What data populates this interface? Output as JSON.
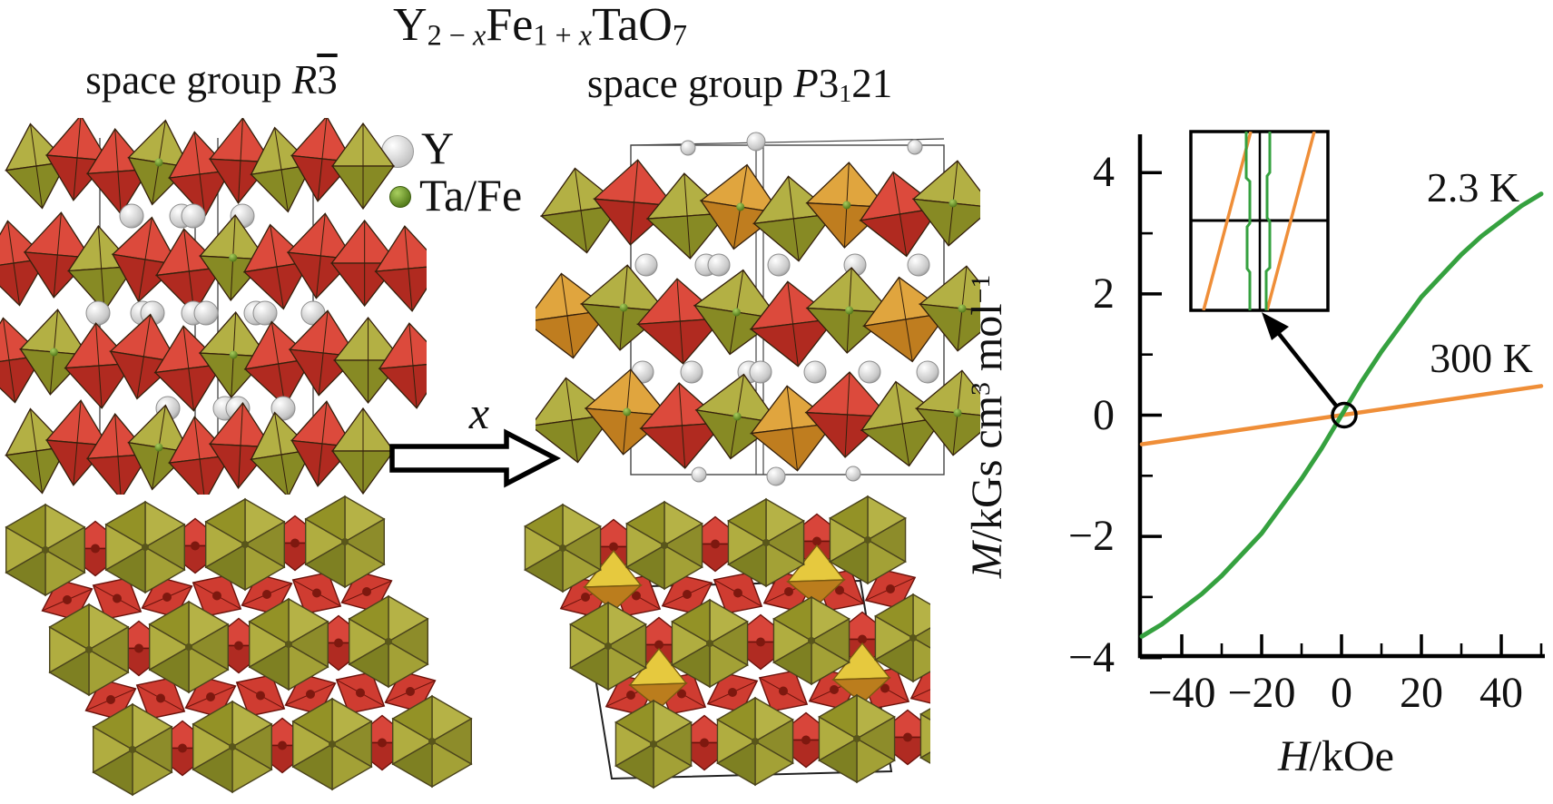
{
  "figure": {
    "title_segments": [
      {
        "text": "Y"
      },
      {
        "text": "2 − ",
        "style": "sub"
      },
      {
        "text": "x",
        "style": "sub-italic"
      },
      {
        "text": "Fe"
      },
      {
        "text": "1 + ",
        "style": "sub"
      },
      {
        "text": "x",
        "style": "sub-italic"
      },
      {
        "text": "TaO"
      },
      {
        "text": "7",
        "style": "sub"
      }
    ],
    "left_panel_label_segments": [
      {
        "text": "space group "
      },
      {
        "text": "R",
        "style": "italic"
      },
      {
        "text": "3",
        "style": "overline"
      }
    ],
    "right_panel_label_segments": [
      {
        "text": "space group "
      },
      {
        "text": "P",
        "style": "italic"
      },
      {
        "text": "3"
      },
      {
        "text": "1",
        "style": "sub"
      },
      {
        "text": "21"
      }
    ],
    "legend": {
      "items": [
        {
          "label": "Y",
          "marker": "white-sphere"
        },
        {
          "label": "Ta/Fe",
          "marker": "green-sphere"
        }
      ]
    },
    "transition_label": "x",
    "colors": {
      "polyhedra_red_up": "#dc4a3c",
      "polyhedra_red_down": "#b02a20",
      "polyhedra_olive_up": "#b3b044",
      "polyhedra_olive_down": "#878a24",
      "polyhedra_orange_up": "#e0a53e",
      "polyhedra_orange_down": "#bf7d1f",
      "polyhedra_yellow": "#e6c93e",
      "polyhedra_edge": "#34200c",
      "sphere_white": "#f0f0f0",
      "sphere_green": "#76a32d",
      "ta_dot_red": "#7e180f",
      "cell_line": "#444444"
    }
  },
  "chart_data": {
    "type": "line",
    "title": "",
    "xlabel_segments": [
      {
        "text": "H",
        "style": "italic"
      },
      {
        "text": "/kOe"
      }
    ],
    "ylabel_segments": [
      {
        "text": "M",
        "style": "italic"
      },
      {
        "text": "/kGs cm"
      },
      {
        "text": "3",
        "style": "sup"
      },
      {
        "text": " mol"
      },
      {
        "text": "−1",
        "style": "sup"
      }
    ],
    "xlabel_plain": "H/kOe",
    "ylabel_plain": "M/kGs cm3 mol-1",
    "xlim": [
      -50.5,
      50.5
    ],
    "ylim": [
      -4,
      4.6
    ],
    "xticks": [
      -40,
      -20,
      0,
      20,
      40
    ],
    "yticks": [
      4,
      2,
      0,
      -2,
      -4
    ],
    "x_minor_step": 10,
    "y_minor_step": 1,
    "grid": false,
    "legend_position": "on-curve-labels",
    "series": [
      {
        "name": "2.3 K",
        "color": "#35a13f",
        "x": [
          -50,
          -45,
          -40,
          -35,
          -30,
          -25,
          -20,
          -15,
          -10,
          -5,
          0,
          5,
          10,
          15,
          20,
          25,
          30,
          35,
          40,
          45,
          50
        ],
        "y": [
          -3.65,
          -3.45,
          -3.2,
          -2.95,
          -2.65,
          -2.3,
          -1.95,
          -1.5,
          -1.05,
          -0.55,
          0,
          0.55,
          1.05,
          1.5,
          1.95,
          2.3,
          2.65,
          2.95,
          3.2,
          3.45,
          3.65
        ]
      },
      {
        "name": "300 K",
        "color": "#ef8e38",
        "x": [
          -50,
          50
        ],
        "y": [
          -0.48,
          0.48
        ]
      }
    ],
    "annotations": {
      "origin_circle_at": [
        0,
        0
      ],
      "inset": {
        "description": "magnified view near H = 0 showing narrow hysteresis loops",
        "series": [
          "2.3 K",
          "300 K"
        ]
      }
    }
  }
}
